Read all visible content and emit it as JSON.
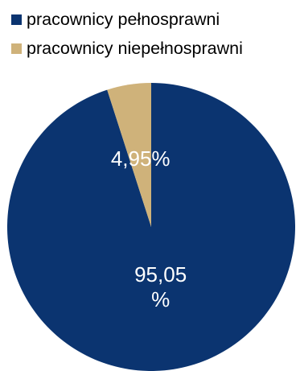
{
  "colors": {
    "dark_navy": "#0b3470",
    "tan": "#cfb27a",
    "background": "#ffffff"
  },
  "chart_data": {
    "type": "pie",
    "title": "",
    "legend_position": "top-left",
    "slices": [
      {
        "name": "pracownicy pełnosprawni",
        "value": 95.05,
        "label": "95,05 %",
        "label_lines": [
          "95,05",
          "%"
        ],
        "color": "#0b3470"
      },
      {
        "name": "pracownicy niepełnosprawni",
        "value": 4.95,
        "label": "4,95%",
        "label_lines": [
          "4,95%"
        ],
        "color": "#cfb27a"
      }
    ]
  }
}
